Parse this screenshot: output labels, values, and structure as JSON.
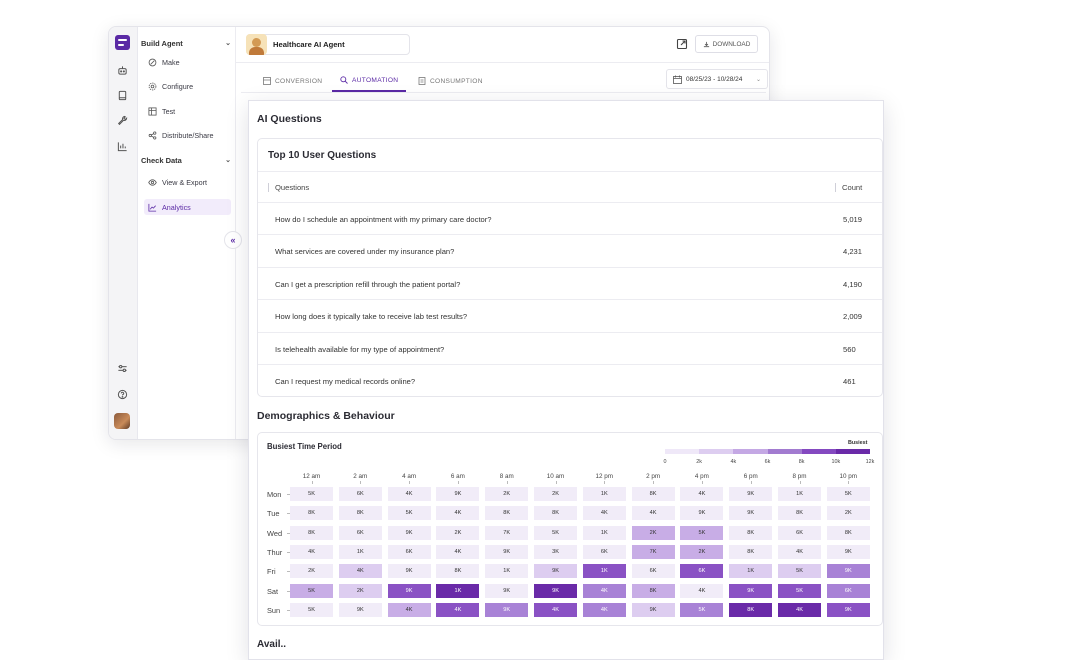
{
  "rail": {
    "icons": [
      "menu-logo-icon",
      "robot-icon",
      "book-icon",
      "wrench-icon",
      "bar-chart-icon",
      "sliders-icon",
      "help-icon",
      "user-avatar"
    ]
  },
  "sidebar": {
    "build_section": "Build Agent",
    "build_items": [
      {
        "label": "Make",
        "icon": "wand-icon"
      },
      {
        "label": "Configure",
        "icon": "gear-icon"
      },
      {
        "label": "Test",
        "icon": "test-icon"
      },
      {
        "label": "Distribute/Share",
        "icon": "share-icon"
      }
    ],
    "check_section": "Check Data",
    "check_items": [
      {
        "label": "View & Export",
        "icon": "eye-icon"
      },
      {
        "label": "Analytics",
        "icon": "line-chart-icon",
        "active": true
      }
    ],
    "collapse_glyph": "«"
  },
  "header": {
    "agent_name": "Healthcare AI Agent",
    "download_label": "DOWNLOAD"
  },
  "tabs": [
    {
      "label": "CONVERSION",
      "icon": "table-icon"
    },
    {
      "label": "AUTOMATION",
      "icon": "search-icon",
      "active": true
    },
    {
      "label": "CONSUMPTION",
      "icon": "doc-icon"
    }
  ],
  "date_range": "08/25/23 - 10/28/24",
  "main": {
    "section_title": "AI Questions",
    "questions_card": {
      "title": "Top 10 User Questions",
      "col_questions": "Questions",
      "col_count": "Count",
      "rows": [
        {
          "q": "How do I schedule an appointment with my primary care doctor?",
          "c": "5,019"
        },
        {
          "q": "What services are covered under my insurance plan?",
          "c": "4,231"
        },
        {
          "q": "Can I get a prescription refill through the patient portal?",
          "c": "4,190"
        },
        {
          "q": "How long does it typically take to receive lab test results?",
          "c": "2,009"
        },
        {
          "q": "Is telehealth available for my type of appointment?",
          "c": "560"
        },
        {
          "q": "Can I request my medical records online?",
          "c": "461"
        }
      ]
    },
    "demographics_title": "Demographics & Behaviour",
    "next_title": "Avail.."
  },
  "chart_data": {
    "type": "heatmap",
    "title": "Busiest Time Period",
    "legend_label": "Busiest",
    "legend_ticks": [
      "0",
      "2k",
      "4k",
      "6k",
      "8k",
      "10k",
      "12k"
    ],
    "legend_colors": [
      "#efe8f8",
      "#ddcdf0",
      "#c4a8e4",
      "#a27bd0",
      "#8449c0",
      "#6a2aa8"
    ],
    "x_labels": [
      "12 am",
      "2 am",
      "4 am",
      "6 am",
      "8 am",
      "10 am",
      "12 pm",
      "2 pm",
      "4 pm",
      "6 pm",
      "8 pm",
      "10 pm"
    ],
    "y_labels": [
      "Mon",
      "Tue",
      "Wed",
      "Thur",
      "Fri",
      "Sat",
      "Sun"
    ],
    "values": [
      [
        "5K",
        "6K",
        "4K",
        "9K",
        "2K",
        "2K",
        "1K",
        "8K",
        "4K",
        "9K",
        "1K",
        "5K"
      ],
      [
        "8K",
        "8K",
        "5K",
        "4K",
        "8K",
        "8K",
        "4K",
        "4K",
        "9K",
        "9K",
        "8K",
        "2K"
      ],
      [
        "8K",
        "6K",
        "9K",
        "2K",
        "7K",
        "5K",
        "1K",
        "2K",
        "5K",
        "8K",
        "6K",
        "8K"
      ],
      [
        "4K",
        "1K",
        "6K",
        "4K",
        "9K",
        "3K",
        "6K",
        "7K",
        "2K",
        "8K",
        "4K",
        "9K"
      ],
      [
        "2K",
        "4K",
        "9K",
        "8K",
        "1K",
        "9K",
        "1K",
        "6K",
        "6K",
        "1K",
        "5K",
        "9K"
      ],
      [
        "5K",
        "2K",
        "9K",
        "1K",
        "9K",
        "9K",
        "4K",
        "8K",
        "4K",
        "9K",
        "5K",
        "6K"
      ],
      [
        "5K",
        "9K",
        "4K",
        "4K",
        "9K",
        "4K",
        "4K",
        "9K",
        "5K",
        "8K",
        "4K",
        "9K"
      ]
    ],
    "intensity": [
      [
        0,
        0,
        0,
        0,
        0,
        0,
        0,
        0,
        0,
        0,
        0,
        0
      ],
      [
        0,
        0,
        0,
        0,
        0,
        0,
        0,
        0,
        0,
        0,
        0,
        0
      ],
      [
        0,
        0,
        0,
        0,
        0,
        0,
        0,
        2,
        2,
        0,
        0,
        0
      ],
      [
        0,
        0,
        0,
        0,
        0,
        0,
        0,
        2,
        2,
        0,
        0,
        0
      ],
      [
        0,
        1,
        0,
        0,
        0,
        1,
        4,
        0,
        4,
        1,
        1,
        3
      ],
      [
        2,
        1,
        4,
        5,
        0,
        5,
        3,
        2,
        0,
        4,
        4,
        3
      ],
      [
        0,
        0,
        2,
        4,
        3,
        4,
        3,
        1,
        3,
        5,
        5,
        4
      ]
    ]
  }
}
